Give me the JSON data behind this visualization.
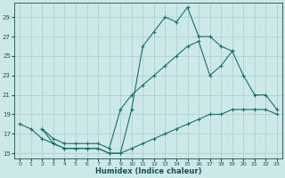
{
  "xlabel": "Humidex (Indice chaleur)",
  "bg_color": "#cce8e8",
  "grid_color": "#aacccc",
  "line_color": "#1a7068",
  "series": [
    {
      "x": [
        0,
        1,
        2,
        3,
        4,
        5,
        6,
        7,
        8,
        9,
        10,
        11,
        12,
        13,
        14,
        15,
        16,
        17,
        18,
        19
      ],
      "y": [
        18.0,
        17.5,
        16.5,
        16.0,
        15.5,
        15.5,
        15.5,
        15.5,
        15.0,
        15.0,
        19.5,
        26.0,
        27.5,
        29.0,
        28.5,
        30.0,
        27.0,
        27.0,
        26.0,
        25.5
      ]
    },
    {
      "x": [
        2,
        3,
        4,
        5,
        6,
        7,
        8,
        9,
        10,
        11,
        12,
        13,
        14,
        15,
        16,
        17,
        18,
        19,
        20,
        21,
        22,
        23
      ],
      "y": [
        17.5,
        16.0,
        15.5,
        15.5,
        15.5,
        15.5,
        15.0,
        15.0,
        15.5,
        16.0,
        16.5,
        17.0,
        17.5,
        18.0,
        18.5,
        19.0,
        19.0,
        19.5,
        19.5,
        19.5,
        19.5,
        19.0
      ]
    },
    {
      "x": [
        2,
        3,
        4,
        5,
        6,
        7,
        8,
        9,
        10,
        11,
        12,
        13,
        14,
        15,
        16,
        17,
        18,
        19,
        20,
        21,
        22,
        23
      ],
      "y": [
        17.5,
        16.5,
        16.0,
        16.0,
        16.0,
        16.0,
        15.5,
        19.5,
        21.0,
        22.0,
        23.0,
        24.0,
        25.0,
        26.0,
        26.5,
        23.0,
        24.0,
        25.5,
        23.0,
        21.0,
        21.0,
        19.5
      ]
    }
  ],
  "xlim": [
    -0.5,
    23.5
  ],
  "ylim": [
    14.5,
    30.5
  ],
  "yticks": [
    15,
    17,
    19,
    21,
    23,
    25,
    27,
    29
  ],
  "xticks": [
    0,
    1,
    2,
    3,
    4,
    5,
    6,
    7,
    8,
    9,
    10,
    11,
    12,
    13,
    14,
    15,
    16,
    17,
    18,
    19,
    20,
    21,
    22,
    23
  ]
}
